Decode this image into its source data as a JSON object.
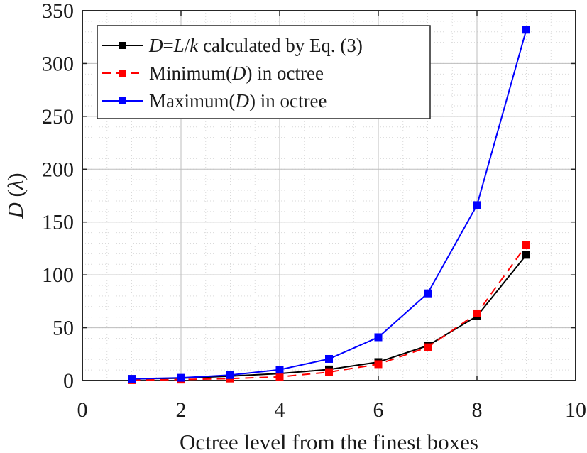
{
  "chart_data": {
    "type": "line",
    "title": "",
    "xlabel": "Octree level from the finest boxes",
    "ylabel": "D (λ)",
    "ylabel_parts": {
      "symbol": "D",
      "unit_open": " (",
      "unit": "λ",
      "unit_close": ")"
    },
    "xlim": [
      0,
      10
    ],
    "ylim": [
      0,
      350
    ],
    "xticks": [
      0,
      2,
      4,
      6,
      8,
      10
    ],
    "yticks": [
      0,
      50,
      100,
      150,
      200,
      250,
      300,
      350
    ],
    "xtick_labels": [
      "0",
      "2",
      "4",
      "6",
      "8",
      "10"
    ],
    "ytick_labels": [
      "0",
      "50",
      "100",
      "150",
      "200",
      "250",
      "300",
      "350"
    ],
    "grid": true,
    "minor_grid": true,
    "legend_position": "top-left",
    "x": [
      1,
      2,
      3,
      4,
      5,
      6,
      7,
      8,
      9
    ],
    "series": [
      {
        "name": "D=L/k calculated by Eq. (3)",
        "legend_parts": {
          "a": "D",
          "b": "=",
          "c": "L",
          "d": "/",
          "e": "k",
          "f": " calculated by Eq. (3)"
        },
        "color": "#000000",
        "dash": "solid",
        "marker": "square",
        "values": [
          1.5,
          2.3,
          4.2,
          6.6,
          10.5,
          17.5,
          33,
          61,
          119
        ]
      },
      {
        "name": "Minimum(D) in octree",
        "legend_parts": {
          "a": "Minimum(",
          "b": "D",
          "c": ") in octree"
        },
        "color": "#ff0000",
        "dash": "dashed",
        "marker": "square",
        "values": [
          0.4,
          0.9,
          1.9,
          3.5,
          8,
          15.5,
          31.5,
          63.5,
          128
        ]
      },
      {
        "name": "Maximum(D) in octree",
        "legend_parts": {
          "a": "Maximum(",
          "b": "D",
          "c": ") in octree"
        },
        "color": "#0000ff",
        "dash": "solid",
        "marker": "square",
        "values": [
          1.6,
          2.6,
          5.2,
          10.3,
          20.5,
          41,
          82.5,
          166,
          332
        ]
      }
    ]
  }
}
